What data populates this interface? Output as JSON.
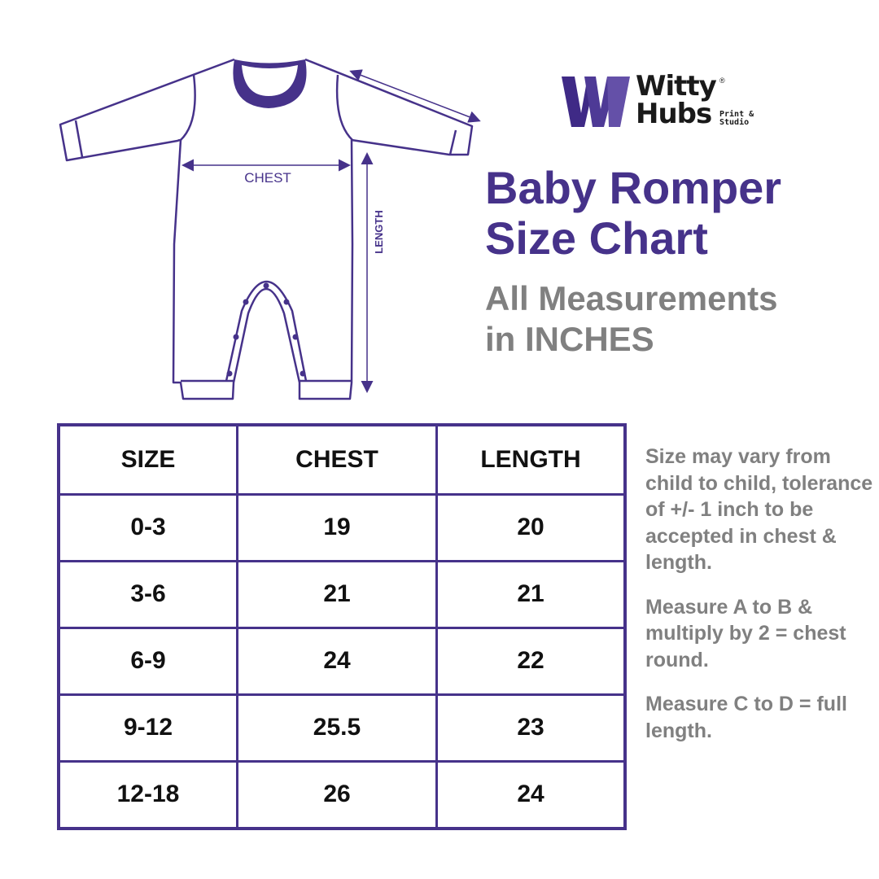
{
  "brand": {
    "name_line1": "Witty",
    "name_line2": "Hubs",
    "tagline": "Print & Studio",
    "registered": "®",
    "logo_color": "#46328a"
  },
  "title": {
    "line1": "Baby Romper",
    "line2": "Size Chart"
  },
  "subtitle": {
    "line1": "All Measurements",
    "line2": "in INCHES"
  },
  "diagram": {
    "chest_label": "CHEST",
    "length_label": "LENGTH"
  },
  "table": {
    "headers": [
      "SIZE",
      "CHEST",
      "LENGTH"
    ],
    "rows": [
      [
        "0-3",
        "19",
        "20"
      ],
      [
        "3-6",
        "21",
        "21"
      ],
      [
        "6-9",
        "24",
        "22"
      ],
      [
        "9-12",
        "25.5",
        "23"
      ],
      [
        "12-18",
        "26",
        "24"
      ]
    ]
  },
  "notes": [
    "Size may vary from child to child, tolerance of +/- 1 inch to be accepted in chest & length.",
    "Measure A to B & multiply by 2 = chest round.",
    "Measure C to D = full length."
  ],
  "colors": {
    "accent": "#46328a",
    "grey": "#808080"
  }
}
